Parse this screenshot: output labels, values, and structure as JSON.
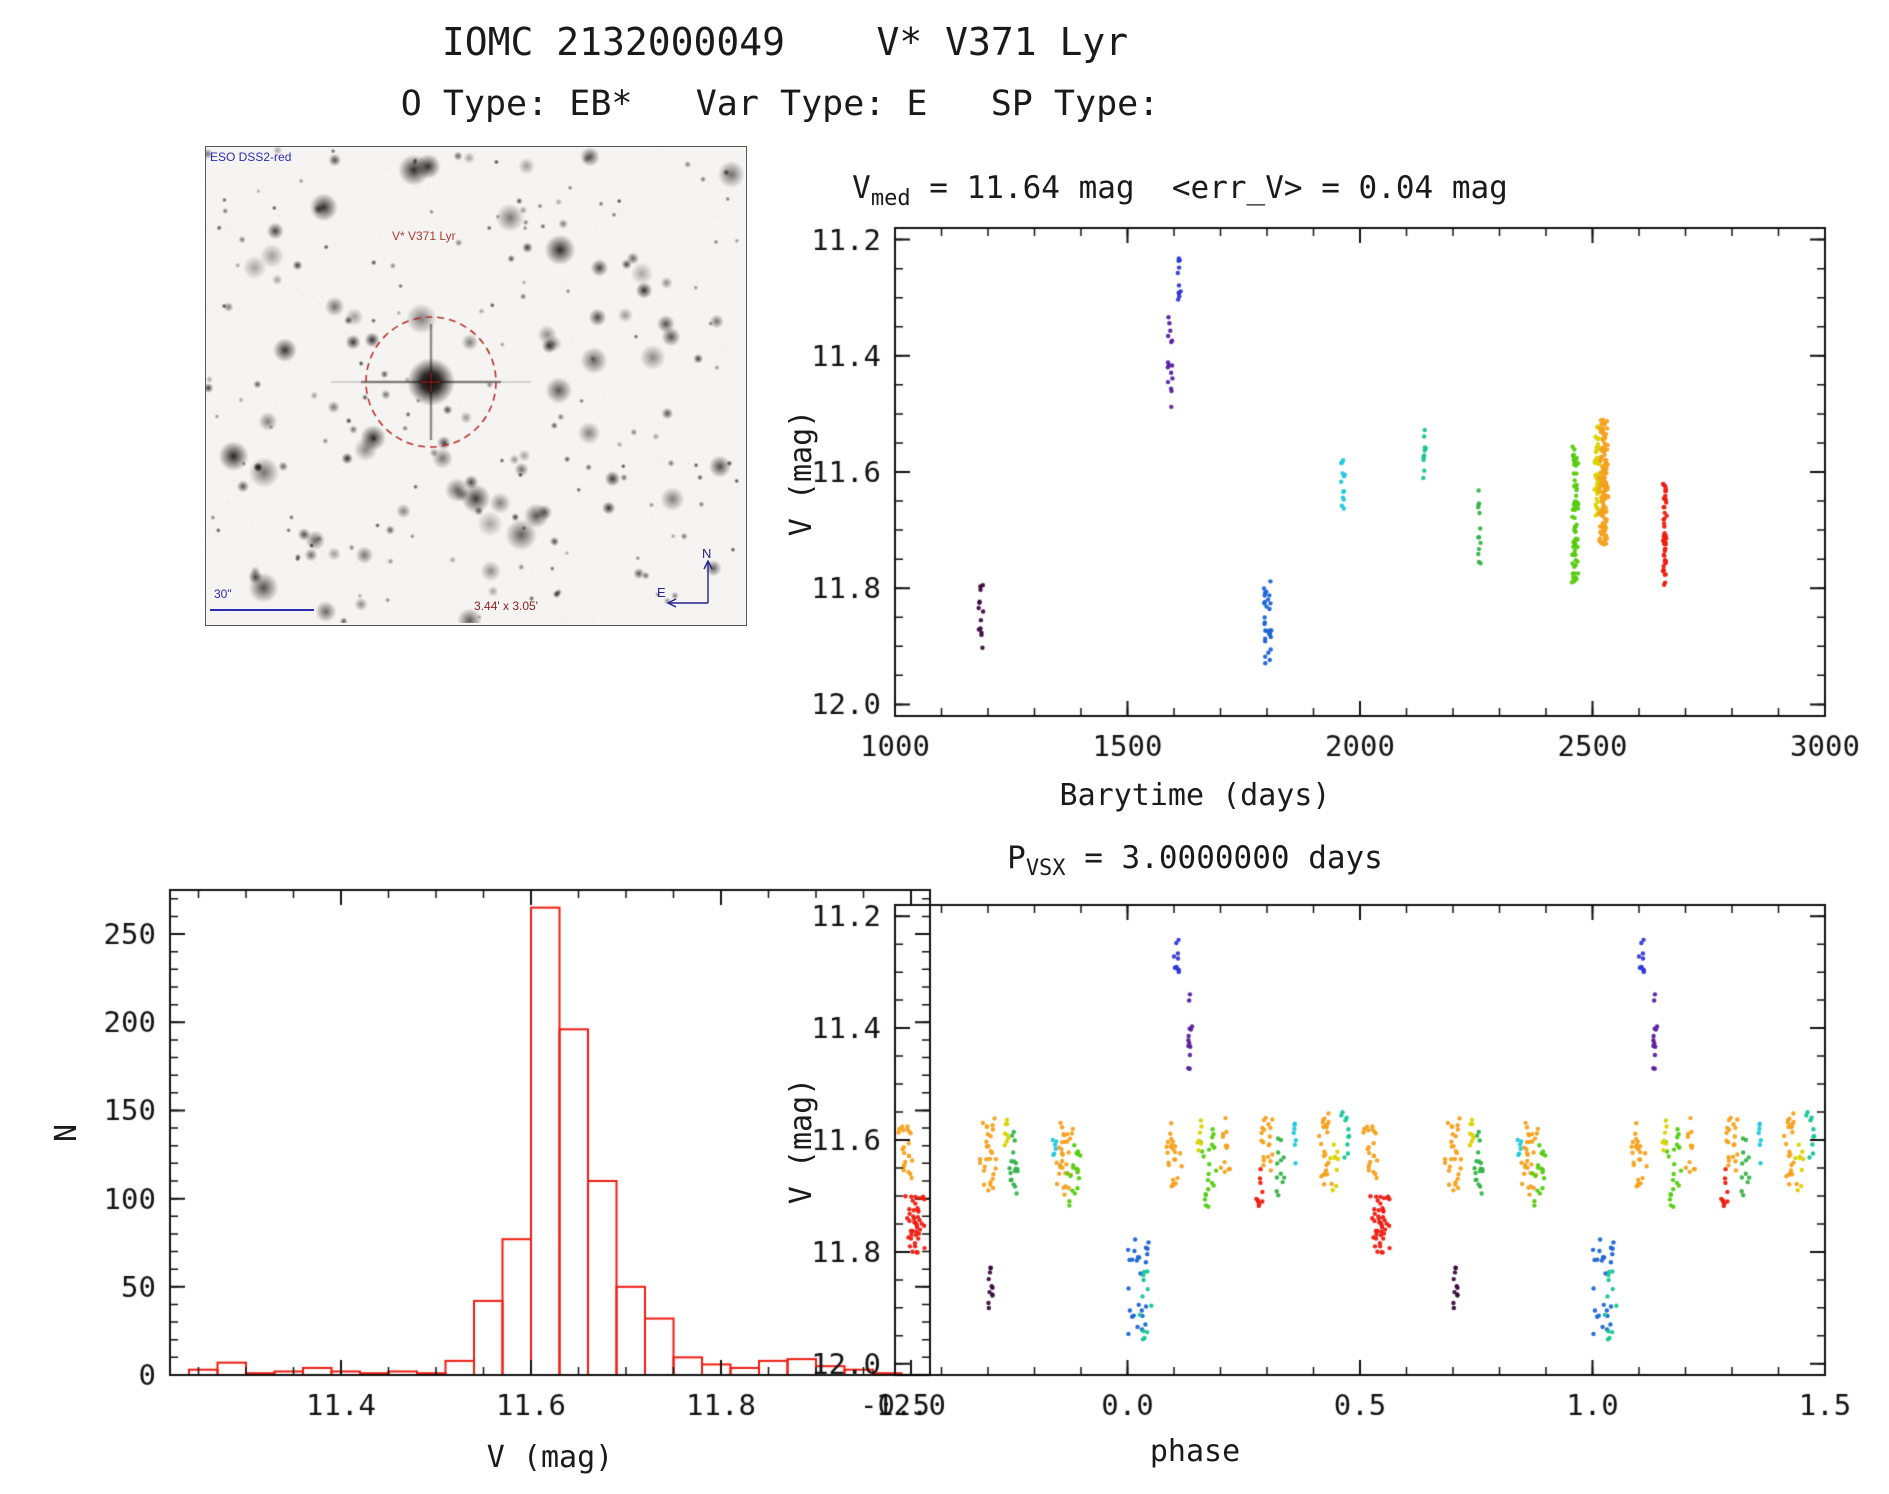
{
  "page": {
    "title": "IOMC 2132000049    V* V371 Lyr",
    "subtitle": "O Type: EB*   Var Type: E   SP Type:"
  },
  "finder": {
    "survey_label": "ESO DSS2-red",
    "target_label": "V* V371 Lyr",
    "scale_label": "30\"",
    "fov_label": "3.44' x 3.05'",
    "compass_north": "N",
    "compass_east": "E",
    "circle_color": "#b5302a",
    "cross_color": "#8b1a1a",
    "seed": 7,
    "num_stars": 230
  },
  "chart_data": [
    {
      "id": "lightcurve",
      "type": "scatter",
      "title_pre": "V",
      "title_sub": "med",
      "title_post": " = 11.64 mag  <err_V> = 0.04 mag",
      "v_med_mag": 11.64,
      "err_v_mag": 0.04,
      "xlabel": "Barytime (days)",
      "ylabel": "V (mag)",
      "xlim": [
        1000,
        3000
      ],
      "ylim": [
        11.18,
        12.02
      ],
      "xticks": [
        1000,
        1500,
        2000,
        2500,
        3000
      ],
      "xtick_labels": [
        "1000",
        "1500",
        "2000",
        "2500",
        "3000"
      ],
      "yticks": [
        11.2,
        11.4,
        11.6,
        11.8,
        12.0
      ],
      "ytick_labels": [
        "11.2",
        "11.4",
        "11.6",
        "11.8",
        "12.0"
      ],
      "x_minor": 100,
      "y_minor": 0.05,
      "seed": 11,
      "clusters": [
        {
          "x": 1185,
          "xs": 6,
          "y0": 11.79,
          "y1": 11.905,
          "n": 13,
          "color": "#3a0b3d"
        },
        {
          "x": 1593,
          "xs": 7,
          "y0": 11.325,
          "y1": 11.49,
          "n": 16,
          "color": "#5a1fa0"
        },
        {
          "x": 1612,
          "xs": 5,
          "y0": 11.23,
          "y1": 11.305,
          "n": 11,
          "color": "#3138d8"
        },
        {
          "x": 1795,
          "xs": 5,
          "y0": 11.8,
          "y1": 11.93,
          "n": 16,
          "color": "#1c64d4"
        },
        {
          "x": 1806,
          "xs": 4,
          "y0": 11.77,
          "y1": 11.96,
          "n": 14,
          "color": "#1c64d4"
        },
        {
          "x": 1963,
          "xs": 5,
          "y0": 11.575,
          "y1": 11.67,
          "n": 13,
          "color": "#22c8dc"
        },
        {
          "x": 2138,
          "xs": 5,
          "y0": 11.525,
          "y1": 11.615,
          "n": 11,
          "color": "#17c596"
        },
        {
          "x": 2256,
          "xs": 5,
          "y0": 11.63,
          "y1": 11.76,
          "n": 13,
          "color": "#37b34a"
        },
        {
          "x": 2462,
          "xs": 8,
          "y0": 11.55,
          "y1": 11.79,
          "n": 75,
          "color": "#55cc11"
        },
        {
          "x": 2510,
          "xs": 6,
          "y0": 11.52,
          "y1": 11.68,
          "n": 45,
          "color": "#d9d400"
        },
        {
          "x": 2524,
          "xs": 11,
          "y0": 11.51,
          "y1": 11.725,
          "n": 150,
          "color": "#f5a11d"
        },
        {
          "x": 2655,
          "xs": 5,
          "y0": 11.62,
          "y1": 11.81,
          "n": 50,
          "color": "#ee1c11"
        }
      ]
    },
    {
      "id": "histogram",
      "type": "histogram",
      "xlabel": "V (mag)",
      "ylabel": "N",
      "xlim": [
        11.22,
        12.02
      ],
      "ylim": [
        275,
        0
      ],
      "xticks": [
        11.4,
        11.6,
        11.8,
        12.0
      ],
      "xtick_labels": [
        "11.4",
        "11.6",
        "11.8",
        "12.0"
      ],
      "yticks": [
        0,
        50,
        100,
        150,
        200,
        250
      ],
      "ytick_labels": [
        "0",
        "50",
        "100",
        "150",
        "200",
        "250"
      ],
      "x_minor": 0.05,
      "y_minor": 10,
      "bin_start": 11.24,
      "bin_width": 0.03,
      "counts": [
        3,
        7,
        1,
        2,
        4,
        2,
        1,
        2,
        1,
        8,
        42,
        77,
        265,
        196,
        110,
        50,
        32,
        10,
        6,
        4,
        8,
        9,
        5,
        3,
        1
      ],
      "color": "#ee1c11"
    },
    {
      "id": "phasecurve",
      "type": "scatter",
      "phase_repeat": true,
      "title_pre": "P",
      "title_sub": "VSX",
      "title_post": " = 3.0000000 days",
      "period_days": "3.0000000",
      "xlabel": "phase",
      "ylabel": "V (mag)",
      "xlim": [
        -0.5,
        1.5
      ],
      "ylim": [
        11.18,
        12.02
      ],
      "xticks": [
        -0.5,
        0.0,
        0.5,
        1.0,
        1.5
      ],
      "xtick_labels": [
        "-0.5",
        "0.0",
        "0.5",
        "1.0",
        "1.5"
      ],
      "yticks": [
        11.2,
        11.4,
        11.6,
        11.8,
        12.0
      ],
      "ytick_labels": [
        "11.2",
        "11.4",
        "11.6",
        "11.8",
        "12.0"
      ],
      "x_minor": 0.1,
      "y_minor": 0.05,
      "seed": 23,
      "clusters": [
        {
          "x": -0.455,
          "xs": 0.025,
          "y0": 11.7,
          "y1": 11.805,
          "n": 45,
          "color": "#ee1c11"
        },
        {
          "x": -0.475,
          "xs": 0.018,
          "y0": 11.57,
          "y1": 11.68,
          "n": 22,
          "color": "#f5a11d"
        },
        {
          "x": -0.295,
          "xs": 0.012,
          "y0": 11.825,
          "y1": 11.905,
          "n": 11,
          "color": "#3a0b3d"
        },
        {
          "x": -0.3,
          "xs": 0.022,
          "y0": 11.56,
          "y1": 11.69,
          "n": 28,
          "color": "#f5a11d"
        },
        {
          "x": -0.245,
          "xs": 0.015,
          "y0": 11.57,
          "y1": 11.7,
          "n": 18,
          "color": "#37b34a"
        },
        {
          "x": -0.26,
          "xs": 0.01,
          "y0": 11.55,
          "y1": 11.63,
          "n": 8,
          "color": "#d9d400"
        },
        {
          "x": -0.135,
          "xs": 0.02,
          "y0": 11.56,
          "y1": 11.7,
          "n": 30,
          "color": "#f5a11d"
        },
        {
          "x": -0.115,
          "xs": 0.015,
          "y0": 11.6,
          "y1": 11.73,
          "n": 18,
          "color": "#55cc11"
        },
        {
          "x": -0.16,
          "xs": 0.008,
          "y0": 11.6,
          "y1": 11.66,
          "n": 6,
          "color": "#22c8dc"
        },
        {
          "x": 0.02,
          "xs": 0.028,
          "y0": 11.77,
          "y1": 11.965,
          "n": 26,
          "color": "#1c64d4"
        },
        {
          "x": 0.035,
          "xs": 0.018,
          "y0": 11.82,
          "y1": 11.96,
          "n": 12,
          "color": "#17c596"
        },
        {
          "x": 0.105,
          "xs": 0.012,
          "y0": 11.235,
          "y1": 11.305,
          "n": 11,
          "color": "#3138d8"
        },
        {
          "x": 0.135,
          "xs": 0.009,
          "y0": 11.33,
          "y1": 11.475,
          "n": 13,
          "color": "#5a1fa0"
        },
        {
          "x": 0.1,
          "xs": 0.02,
          "y0": 11.57,
          "y1": 11.69,
          "n": 24,
          "color": "#f5a11d"
        },
        {
          "x": 0.175,
          "xs": 0.018,
          "y0": 11.58,
          "y1": 11.72,
          "n": 22,
          "color": "#55cc11"
        },
        {
          "x": 0.21,
          "xs": 0.012,
          "y0": 11.56,
          "y1": 11.66,
          "n": 12,
          "color": "#f5a11d"
        },
        {
          "x": 0.155,
          "xs": 0.008,
          "y0": 11.55,
          "y1": 11.62,
          "n": 7,
          "color": "#d9d400"
        },
        {
          "x": 0.285,
          "xs": 0.012,
          "y0": 11.63,
          "y1": 11.73,
          "n": 10,
          "color": "#ee1c11"
        },
        {
          "x": 0.3,
          "xs": 0.018,
          "y0": 11.56,
          "y1": 11.68,
          "n": 20,
          "color": "#f5a11d"
        },
        {
          "x": 0.33,
          "xs": 0.012,
          "y0": 11.59,
          "y1": 11.7,
          "n": 12,
          "color": "#37b34a"
        },
        {
          "x": 0.36,
          "xs": 0.008,
          "y0": 11.57,
          "y1": 11.65,
          "n": 7,
          "color": "#22c8dc"
        },
        {
          "x": 0.425,
          "xs": 0.018,
          "y0": 11.55,
          "y1": 11.68,
          "n": 24,
          "color": "#f5a11d"
        },
        {
          "x": 0.445,
          "xs": 0.01,
          "y0": 11.6,
          "y1": 11.7,
          "n": 9,
          "color": "#d9d400"
        },
        {
          "x": 0.47,
          "xs": 0.012,
          "y0": 11.54,
          "y1": 11.64,
          "n": 10,
          "color": "#17c596"
        }
      ]
    }
  ]
}
